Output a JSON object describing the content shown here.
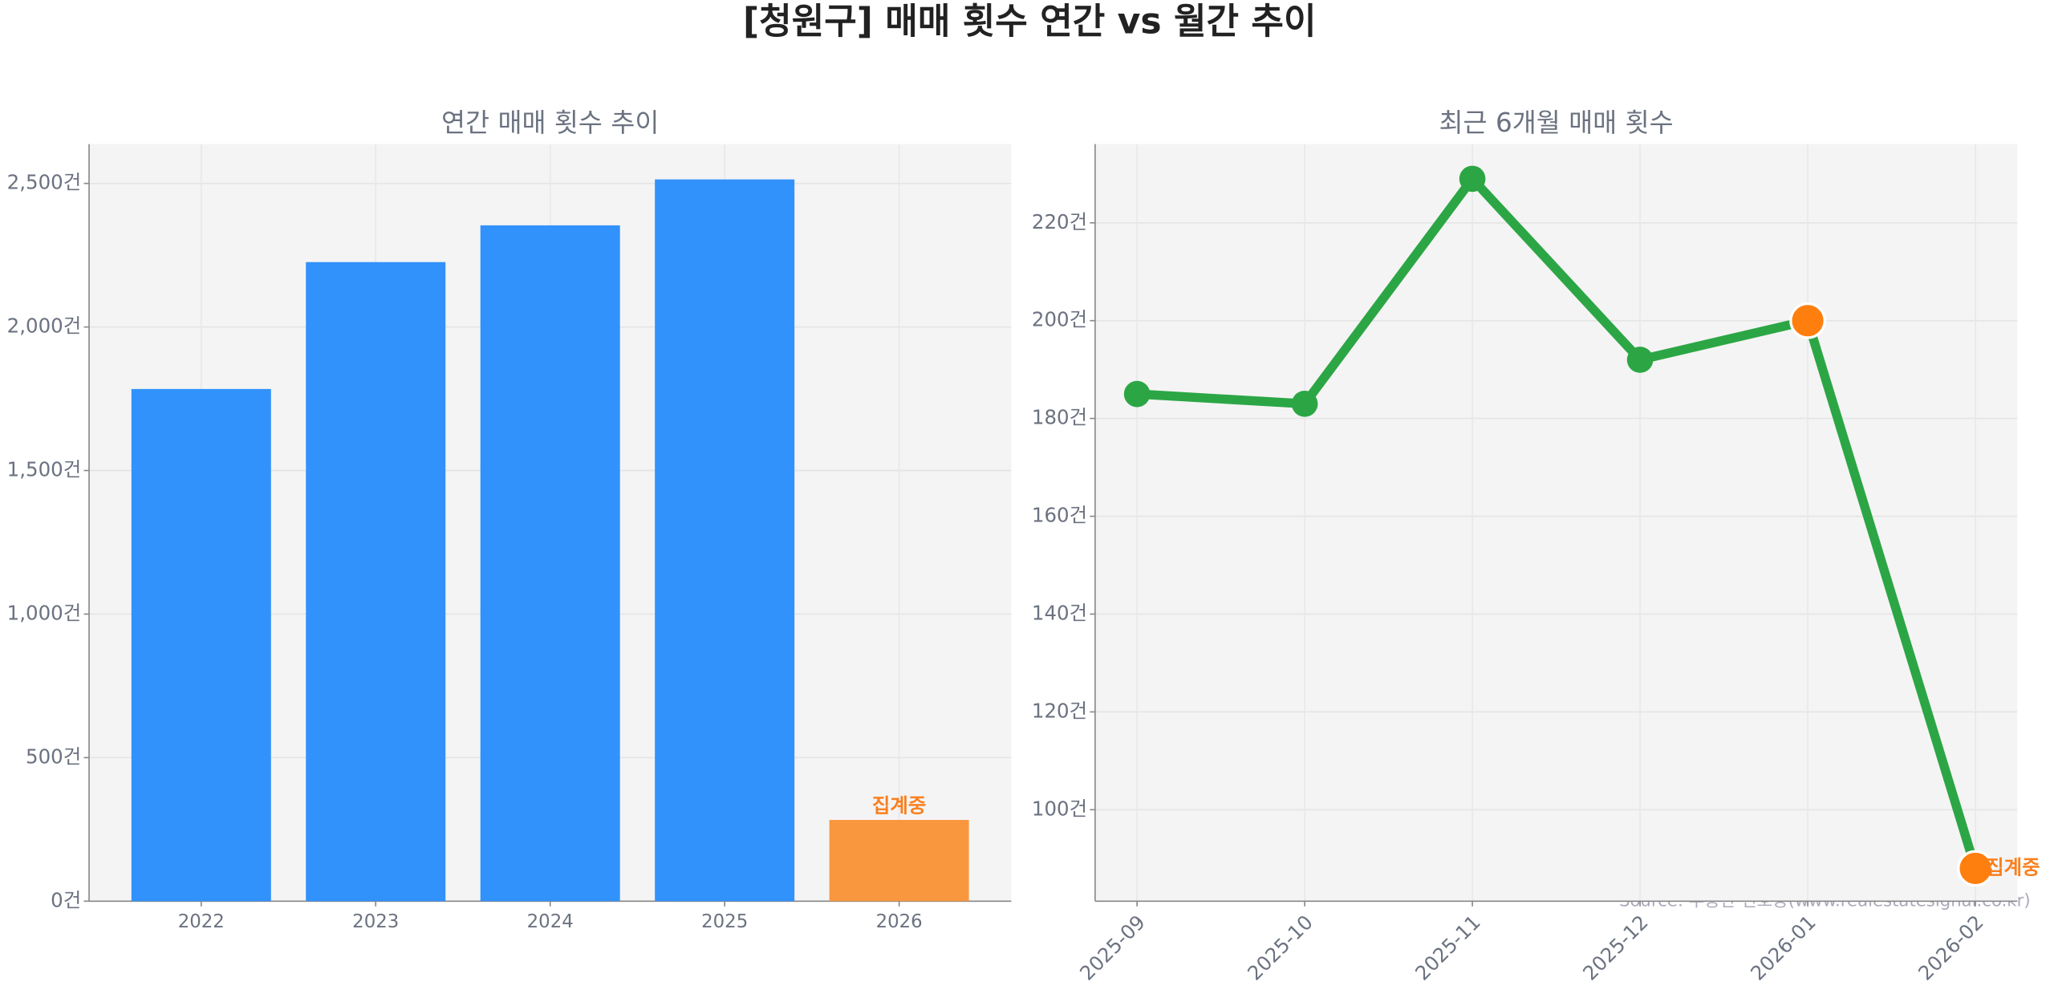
{
  "title": "[청원구] 매매 횟수 연간 vs 월간 추이",
  "source": "Source: 부동산 신호등(www.realestatesignal.co.kr)",
  "chart_data": [
    {
      "type": "bar",
      "title": "연간 매매 횟수 추이",
      "categories": [
        "2022",
        "2023",
        "2024",
        "2025",
        "2026"
      ],
      "values": [
        1784,
        2226,
        2354,
        2514,
        283
      ],
      "colors": [
        "#3192fb",
        "#3192fb",
        "#3192fb",
        "#3192fb",
        "#f9973f"
      ],
      "ylim": [
        0,
        2637
      ],
      "yticks": [
        {
          "value": 0,
          "label": "0건"
        },
        {
          "value": 500,
          "label": "500건"
        },
        {
          "value": 1000,
          "label": "1,000건"
        },
        {
          "value": 1500,
          "label": "1,500건"
        },
        {
          "value": 2000,
          "label": "2,000건"
        },
        {
          "value": 2500,
          "label": "2,500건"
        }
      ],
      "grid": true,
      "annotations": [
        {
          "text": "집계중",
          "category": "2026",
          "color": "#f9801f"
        }
      ]
    },
    {
      "type": "line",
      "title": "최근 6개월 매매 횟수",
      "categories": [
        "2025-09",
        "2025-10",
        "2025-11",
        "2025-12",
        "2026-01",
        "2026-02"
      ],
      "values": [
        185,
        183,
        229,
        192,
        200,
        88
      ],
      "color": "#2ca645",
      "marker_colors": [
        "#2ca645",
        "#2ca645",
        "#2ca645",
        "#2ca645",
        "#ff7f0e",
        "#ff7f0e"
      ],
      "ylim": [
        81.3,
        236.1
      ],
      "yticks": [
        {
          "value": 100,
          "label": "100건"
        },
        {
          "value": 120,
          "label": "120건"
        },
        {
          "value": 140,
          "label": "140건"
        },
        {
          "value": 160,
          "label": "160건"
        },
        {
          "value": 180,
          "label": "180건"
        },
        {
          "value": 200,
          "label": "200건"
        },
        {
          "value": 220,
          "label": "220건"
        }
      ],
      "grid": true,
      "annotations": [
        {
          "text": "집계중",
          "category": "2026-02",
          "color": "#f9801f"
        }
      ]
    }
  ]
}
